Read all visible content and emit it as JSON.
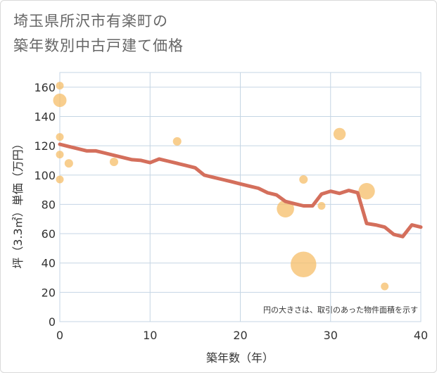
{
  "chart_data": {
    "type": "scatter+line",
    "title_lines": [
      "埼玉県所沢市有楽町の",
      "築年数別中古戸建て価格"
    ],
    "xlabel": "築年数（年）",
    "ylabel": "坪（3.3㎡）単価（万円）",
    "xlim": [
      0,
      40
    ],
    "ylim": [
      0,
      170
    ],
    "x_ticks": [
      0,
      10,
      20,
      30,
      40
    ],
    "y_ticks": [
      0,
      20,
      40,
      60,
      80,
      100,
      120,
      140,
      160
    ],
    "note": "円の大きさは、取引のあった物件面積を示す",
    "grid": true,
    "colors": {
      "bubble": "#f5be68",
      "line": "#d46f5c",
      "grid": "#c5d5e4"
    },
    "bubbles": [
      {
        "x": 0,
        "y": 161,
        "size": 1
      },
      {
        "x": 0,
        "y": 151,
        "size": 3
      },
      {
        "x": 0,
        "y": 126,
        "size": 1
      },
      {
        "x": 0,
        "y": 114,
        "size": 1
      },
      {
        "x": 0,
        "y": 97,
        "size": 1
      },
      {
        "x": 1,
        "y": 108,
        "size": 1.2
      },
      {
        "x": 6,
        "y": 109,
        "size": 1.2
      },
      {
        "x": 13,
        "y": 123,
        "size": 1.2
      },
      {
        "x": 25,
        "y": 77,
        "size": 5
      },
      {
        "x": 27,
        "y": 97,
        "size": 1.2
      },
      {
        "x": 27,
        "y": 39,
        "size": 11
      },
      {
        "x": 29,
        "y": 79,
        "size": 1
      },
      {
        "x": 31,
        "y": 128,
        "size": 2.5
      },
      {
        "x": 34,
        "y": 89,
        "size": 4.5
      },
      {
        "x": 36,
        "y": 24,
        "size": 1
      }
    ],
    "trend_line": {
      "x": [
        0,
        1,
        2,
        3,
        4,
        5,
        6,
        7,
        8,
        9,
        10,
        11,
        12,
        13,
        14,
        15,
        16,
        17,
        18,
        19,
        20,
        21,
        22,
        23,
        24,
        25,
        26,
        27,
        28,
        29,
        30,
        31,
        32,
        33,
        34,
        35,
        36,
        37,
        38,
        39,
        40
      ],
      "y": [
        121,
        119.5,
        118,
        116.5,
        116.5,
        115,
        113.5,
        112,
        110.5,
        110,
        108.5,
        111,
        109.5,
        108,
        106.5,
        105,
        100,
        98.5,
        97,
        95.5,
        94,
        92.5,
        91,
        88,
        86.5,
        82,
        80.5,
        79,
        79,
        87,
        89,
        87.5,
        89.5,
        88,
        67,
        66,
        64.5,
        59.5,
        58,
        66,
        64.5
      ]
    }
  }
}
